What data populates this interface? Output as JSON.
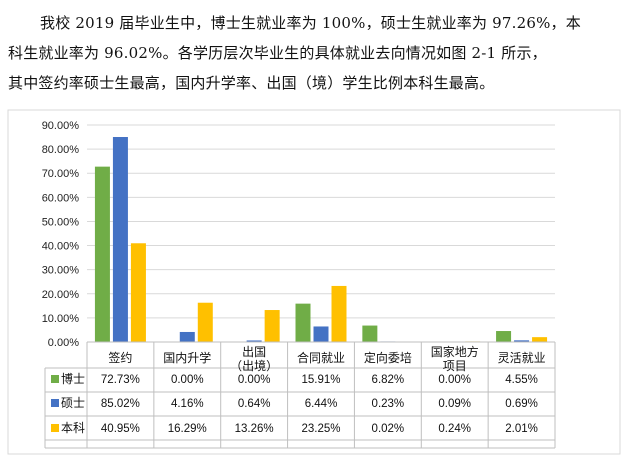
{
  "text": {
    "lines": [
      "我校 2019 届毕业生中，博士生就业率为 100%，硕士生就业率为 97.26%，本",
      "科生就业率为 96.02%。各学历层次毕业生的具体就业去向情况如图 2-1 所示，",
      "其中签约率硕士生最高，国内升学率、出国（境）学生比例本科生最高。"
    ]
  },
  "chart_data": {
    "type": "bar",
    "categories": [
      "签约",
      "国内升学",
      "出国\n（出境）",
      "合同就业",
      "定向委培",
      "国家地方\n项目",
      "灵活就业"
    ],
    "series": [
      {
        "name": "博士",
        "color": "#70ad47",
        "values": [
          72.73,
          0.0,
          0.0,
          15.91,
          6.82,
          0.0,
          4.55
        ],
        "labels": [
          "72.73%",
          "0.00%",
          "0.00%",
          "15.91%",
          "6.82%",
          "0.00%",
          "4.55%"
        ]
      },
      {
        "name": "硕士",
        "color": "#4472c4",
        "values": [
          85.02,
          4.16,
          0.64,
          6.44,
          0.23,
          0.09,
          0.69
        ],
        "labels": [
          "85.02%",
          "4.16%",
          "0.64%",
          "6.44%",
          "0.23%",
          "0.09%",
          "0.69%"
        ]
      },
      {
        "name": "本科",
        "color": "#ffc000",
        "values": [
          40.95,
          16.29,
          13.26,
          23.25,
          0.02,
          0.24,
          2.01
        ],
        "labels": [
          "40.95%",
          "16.29%",
          "13.26%",
          "23.25%",
          "0.02%",
          "0.24%",
          "2.01%"
        ]
      }
    ],
    "yticks": [
      "0.00%",
      "10.00%",
      "20.00%",
      "30.00%",
      "40.00%",
      "50.00%",
      "60.00%",
      "70.00%",
      "80.00%",
      "90.00%"
    ],
    "ylim": [
      0,
      90
    ],
    "grid": true,
    "legend": "data-table"
  }
}
